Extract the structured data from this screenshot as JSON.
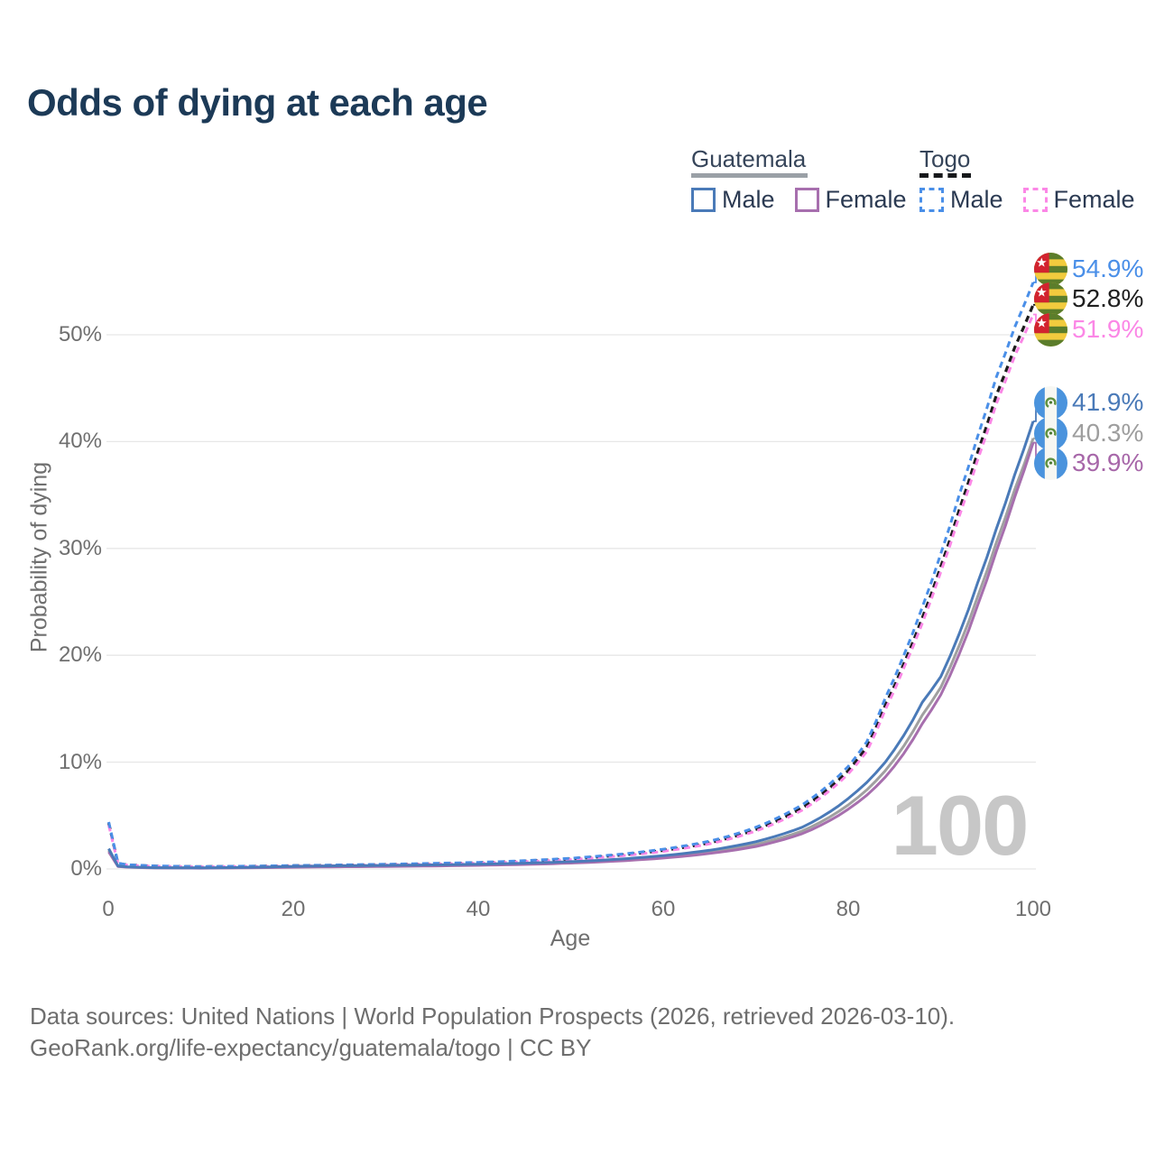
{
  "title": "Odds of dying at each age",
  "watermark": "100",
  "legend": {
    "groups": [
      {
        "label": "Guatemala",
        "underline_style": "solid",
        "underline_color": "#9aa0a6",
        "items": [
          {
            "label": "Male",
            "color": "#4a7ab8"
          },
          {
            "label": "Female",
            "color": "#a76fae"
          }
        ]
      },
      {
        "label": "Togo",
        "underline_style": "dashed",
        "underline_color": "#17191c",
        "items": [
          {
            "label": "Male",
            "color": "#4a8fe8"
          },
          {
            "label": "Female",
            "color": "#fb87e6"
          }
        ]
      }
    ]
  },
  "footer": {
    "line1": "Data sources: United Nations | World Population Prospects (2026, retrieved 2026-03-10).",
    "line2": "GeoRank.org/life-expectancy/guatemala/togo | CC BY"
  },
  "chart_data": {
    "type": "line",
    "title": "Odds of dying at each age",
    "xlabel": "Age",
    "ylabel": "Probability of dying",
    "xlim": [
      0,
      100
    ],
    "ylim_percent": [
      0,
      57
    ],
    "grid": true,
    "legend_position": "top-right",
    "x_ticks": [
      "0",
      "20",
      "40",
      "60",
      "80",
      "100"
    ],
    "x_tick_values": [
      0,
      20,
      40,
      60,
      80,
      100
    ],
    "y_ticks": [
      "0%",
      "10%",
      "20%",
      "30%",
      "40%",
      "50%"
    ],
    "y_tick_values": [
      0,
      10,
      20,
      30,
      40,
      50
    ],
    "ages": [
      0,
      1,
      2,
      5,
      10,
      15,
      20,
      25,
      30,
      35,
      40,
      45,
      50,
      55,
      60,
      65,
      70,
      75,
      80,
      82,
      84,
      86,
      88,
      90,
      92,
      94,
      96,
      98,
      100
    ],
    "series": [
      {
        "name": "Togo Male",
        "country": "Togo",
        "sex": "male",
        "style": "dashed",
        "color": "#4a8fe8",
        "end_label": "54.9%",
        "end_value": 54.9,
        "values_percent": [
          4.4,
          0.55,
          0.4,
          0.28,
          0.22,
          0.26,
          0.32,
          0.38,
          0.44,
          0.52,
          0.62,
          0.78,
          1.0,
          1.35,
          1.85,
          2.6,
          3.9,
          6.0,
          9.6,
          11.9,
          16.0,
          20.0,
          24.5,
          29.5,
          35.0,
          40.5,
          46.0,
          50.7,
          54.9
        ]
      },
      {
        "name": "Togo Total",
        "country": "Togo",
        "sex": "total",
        "style": "dashed",
        "color": "#1c1c1c",
        "end_label": "52.8%",
        "end_value": 52.8,
        "values_percent": [
          4.3,
          0.52,
          0.38,
          0.26,
          0.21,
          0.24,
          0.3,
          0.35,
          0.41,
          0.48,
          0.58,
          0.73,
          0.94,
          1.27,
          1.74,
          2.45,
          3.7,
          5.7,
          9.2,
          11.4,
          15.3,
          19.2,
          23.5,
          28.3,
          33.6,
          39.0,
          44.3,
          48.8,
          52.8
        ]
      },
      {
        "name": "Togo Female",
        "country": "Togo",
        "sex": "female",
        "style": "dashed",
        "color": "#fb87e6",
        "end_label": "51.9%",
        "end_value": 51.9,
        "values_percent": [
          4.1,
          0.5,
          0.36,
          0.25,
          0.2,
          0.22,
          0.27,
          0.32,
          0.38,
          0.45,
          0.54,
          0.68,
          0.88,
          1.2,
          1.65,
          2.35,
          3.55,
          5.5,
          8.9,
          11.0,
          14.9,
          18.8,
          23.0,
          27.8,
          33.0,
          38.3,
          43.5,
          48.0,
          51.9
        ]
      },
      {
        "name": "Guatemala Male",
        "country": "Guatemala",
        "sex": "male",
        "style": "solid",
        "color": "#4a7ab8",
        "end_label": "41.9%",
        "end_value": 41.9,
        "values_percent": [
          1.9,
          0.28,
          0.2,
          0.12,
          0.1,
          0.15,
          0.24,
          0.3,
          0.34,
          0.38,
          0.44,
          0.54,
          0.68,
          0.9,
          1.25,
          1.75,
          2.55,
          3.9,
          6.6,
          8.1,
          10.0,
          12.5,
          15.6,
          18.0,
          22.0,
          26.8,
          31.8,
          36.9,
          41.9
        ]
      },
      {
        "name": "Guatemala Total",
        "country": "Guatemala",
        "sex": "total",
        "style": "solid",
        "color": "#a0a0a0",
        "end_label": "40.3%",
        "end_value": 40.3,
        "values_percent": [
          1.75,
          0.26,
          0.18,
          0.11,
          0.09,
          0.13,
          0.2,
          0.25,
          0.29,
          0.33,
          0.39,
          0.48,
          0.61,
          0.82,
          1.12,
          1.58,
          2.3,
          3.55,
          6.0,
          7.4,
          9.2,
          11.5,
          14.4,
          17.0,
          20.9,
          25.5,
          30.5,
          35.5,
          40.3
        ]
      },
      {
        "name": "Guatemala Female",
        "country": "Guatemala",
        "sex": "female",
        "style": "solid",
        "color": "#a76fae",
        "end_label": "39.9%",
        "end_value": 39.9,
        "values_percent": [
          1.6,
          0.24,
          0.17,
          0.1,
          0.08,
          0.11,
          0.16,
          0.2,
          0.24,
          0.28,
          0.34,
          0.42,
          0.55,
          0.74,
          1.02,
          1.45,
          2.1,
          3.3,
          5.6,
          6.9,
          8.6,
          10.8,
          13.6,
          16.3,
          20.1,
          24.7,
          29.7,
          34.8,
          39.9
        ]
      }
    ]
  }
}
